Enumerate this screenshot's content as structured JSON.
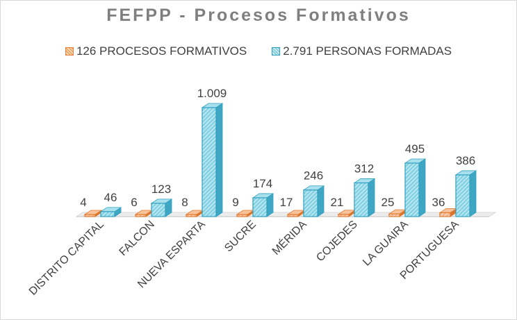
{
  "title": "FEFPP - Procesos Formativos",
  "colors": {
    "series_a": "#ED7D31",
    "series_b": "#4BACC6",
    "title": "#7F7F7F",
    "floor": "#D9D9D9"
  },
  "chart_data": {
    "type": "bar",
    "title": "FEFPP - Procesos Formativos",
    "categories": [
      "DISTRITO CAPITAL",
      "FALCON",
      "NUEVA ESPARTA",
      "SUCRE",
      "MÉRIDA",
      "COJEDES",
      "LA GUAIRA",
      "PORTUGUESA"
    ],
    "series": [
      {
        "name": "126 PROCESOS FORMATIVOS",
        "values": [
          4,
          6,
          8,
          9,
          17,
          21,
          25,
          36
        ],
        "labels": [
          "4",
          "6",
          "8",
          "9",
          "17",
          "21",
          "25",
          "36"
        ]
      },
      {
        "name": "2.791 PERSONAS FORMADAS",
        "values": [
          46,
          123,
          1009,
          174,
          246,
          312,
          495,
          386
        ],
        "labels": [
          "46",
          "123",
          "1.009",
          "174",
          "246",
          "312",
          "495",
          "386"
        ]
      }
    ],
    "ylim": [
      0,
      1009
    ],
    "style": "3d-clustered-column",
    "legend": "top",
    "grid": false
  }
}
